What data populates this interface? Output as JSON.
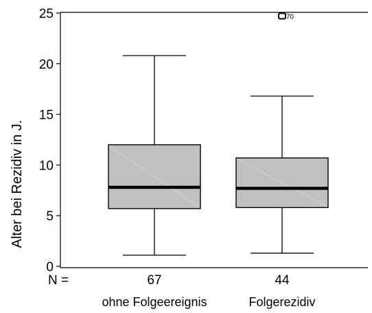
{
  "chart_data": {
    "type": "boxplot",
    "title": "",
    "xlabel": "",
    "ylabel": "Alter bei Rezidiv in J.",
    "ylim": [
      0,
      25
    ],
    "yticks": [
      0,
      5,
      10,
      15,
      20,
      25
    ],
    "n_label": "N =",
    "categories": [
      "ohne Folgeereignis",
      "Folgerezidiv"
    ],
    "boxes": [
      {
        "category": "ohne Folgeereignis",
        "n": "67",
        "whisker_low": 1.1,
        "q1": 5.7,
        "median": 7.8,
        "q3": 12.0,
        "whisker_high": 20.8,
        "outliers": []
      },
      {
        "category": "Folgerezidiv",
        "n": "44",
        "whisker_low": 1.3,
        "q1": 5.8,
        "median": 7.7,
        "q3": 10.7,
        "whisker_high": 16.8,
        "outliers": [
          {
            "value": 24.7,
            "label": "70"
          }
        ]
      }
    ],
    "box_color": "#c0c0c0",
    "line_color": "#000000"
  }
}
